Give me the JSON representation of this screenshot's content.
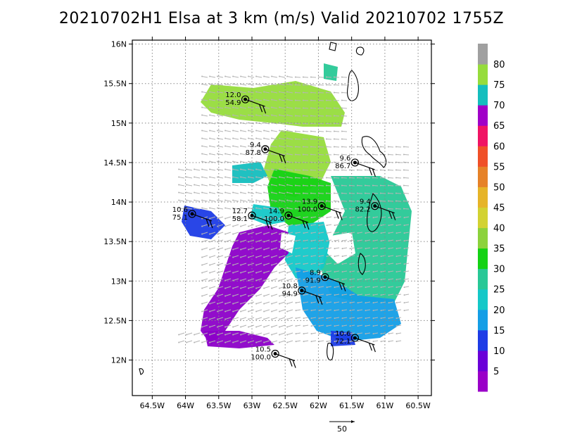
{
  "title": "20210702H1 Elsa at 3 km (m/s) Valid 20210702 1755Z",
  "axes": {
    "x_labels": [
      "64.5W",
      "64W",
      "63.5W",
      "63W",
      "62.5W",
      "62W",
      "61.5W",
      "61W",
      "60.5W"
    ],
    "x_values": [
      -64.5,
      -64,
      -63.5,
      -63,
      -62.5,
      -62,
      -61.5,
      -61,
      -60.5
    ],
    "y_labels": [
      "16N",
      "15.5N",
      "15N",
      "14.5N",
      "14N",
      "13.5N",
      "13N",
      "12.5N",
      "12N"
    ],
    "y_values": [
      16,
      15.5,
      15,
      14.5,
      14,
      13.5,
      13,
      12.5,
      12
    ],
    "lon_range": [
      -64.8,
      -60.3
    ],
    "lat_range": [
      11.55,
      16.05
    ]
  },
  "colorbar": {
    "labels": [
      "5",
      "10",
      "15",
      "20",
      "25",
      "30",
      "35",
      "40",
      "45",
      "50",
      "55",
      "60",
      "65",
      "70",
      "75",
      "80"
    ],
    "colors": [
      "#9a00c8",
      "#6a00d8",
      "#1e3ce6",
      "#149ee6",
      "#14c8c8",
      "#28c896",
      "#14d214",
      "#8cd23c",
      "#d2d232",
      "#e6b428",
      "#e68228",
      "#f05028",
      "#f01464",
      "#a000c8",
      "#14bebe",
      "#96dc3c",
      "#a0a0a0"
    ]
  },
  "scale_arrow_label": "50",
  "chart_data": {
    "type": "map",
    "title": "20210702H1 Elsa at 3 km (m/s) Valid 20210702 1755Z",
    "variable": "wind speed at 3 km (m/s)",
    "stations": [
      {
        "lon": -63.1,
        "lat": 15.3,
        "v1": "12.0",
        "v2": "54.9"
      },
      {
        "lon": -62.8,
        "lat": 14.67,
        "v1": "9.4",
        "v2": "87.8"
      },
      {
        "lon": -61.45,
        "lat": 14.5,
        "v1": "9.6",
        "v2": "86.7"
      },
      {
        "lon": -63.9,
        "lat": 13.85,
        "v1": "10.6",
        "v2": "75.1"
      },
      {
        "lon": -63.0,
        "lat": 13.83,
        "v1": "12.7",
        "v2": "58.1"
      },
      {
        "lon": -62.45,
        "lat": 13.83,
        "v1": "14.9",
        "v2": "100.0"
      },
      {
        "lon": -61.95,
        "lat": 13.95,
        "v1": "13.9",
        "v2": "100.0"
      },
      {
        "lon": -61.15,
        "lat": 13.95,
        "v1": "9.4",
        "v2": "82.2"
      },
      {
        "lon": -61.9,
        "lat": 13.05,
        "v1": "8.9",
        "v2": "91.9"
      },
      {
        "lon": -62.25,
        "lat": 12.88,
        "v1": "10.8",
        "v2": "94.9"
      },
      {
        "lon": -61.45,
        "lat": 12.28,
        "v1": "10.6",
        "v2": "72.1"
      },
      {
        "lon": -62.65,
        "lat": 12.08,
        "v1": "10.5",
        "v2": "100.0"
      }
    ]
  }
}
